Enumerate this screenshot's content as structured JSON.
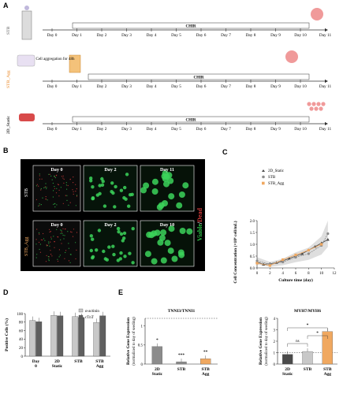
{
  "panels": {
    "A": "A",
    "B": "B",
    "C": "C",
    "D": "D",
    "E": "E"
  },
  "colors": {
    "stb": "#8c8c8c",
    "stb_agg": "#f0a860",
    "static": "#4a4a4a",
    "viable": "#2fc24a",
    "dead": "#d23a3a",
    "gray_bar": "#c8c8c8",
    "dark_bar": "#5f5f5f"
  },
  "panelA": {
    "days": [
      "Day 0",
      "Day 1",
      "Day 2",
      "Day 3",
      "Day 4",
      "Day 5",
      "Day 6",
      "Day 7",
      "Day 8",
      "Day 9",
      "Day 10",
      "Day 11"
    ],
    "rows": [
      {
        "label": "STB",
        "chir": "CHIR"
      },
      {
        "label": "STB_Agg",
        "chir": "CHIR",
        "note": "Cell aggregation for 48h"
      },
      {
        "label": "2D_Static",
        "chir": "CHIR"
      }
    ]
  },
  "panelB": {
    "rows": [
      {
        "label": "STB",
        "days": [
          "Day 0",
          "Day 2",
          "Day 11"
        ]
      },
      {
        "label": "STB_Agg",
        "days": [
          "Day 0",
          "Day 2",
          "Day 10"
        ]
      }
    ],
    "side_label_viable": "Viable",
    "side_label_sep": "/",
    "side_label_dead": "Dead"
  },
  "chart_data": [
    {
      "panel": "C",
      "type": "line",
      "xlabel": "Culture time (day)",
      "ylabel": "Cell Concentration (×10⁶ cell/mL)",
      "xlim": [
        0,
        12
      ],
      "ylim": [
        0,
        2.0
      ],
      "xticks": [
        0,
        2,
        4,
        6,
        8,
        10,
        12
      ],
      "yticks": [
        0,
        0.5,
        1.0,
        1.5,
        2.0
      ],
      "legend": [
        "2D_Static",
        "STB",
        "STB_Agg"
      ],
      "series": [
        {
          "name": "2D_Static",
          "x": [
            0,
            1,
            2,
            3,
            4,
            5,
            6,
            7,
            8,
            9,
            10,
            11
          ],
          "y": [
            0.25,
            0.15,
            0.18,
            0.22,
            0.3,
            0.4,
            0.5,
            0.6,
            0.75,
            0.9,
            1.05,
            1.2
          ]
        },
        {
          "name": "STB",
          "x": [
            0,
            2,
            4,
            6,
            8,
            10,
            11
          ],
          "y": [
            0.3,
            0.15,
            0.25,
            0.45,
            0.6,
            0.95,
            1.45
          ]
        },
        {
          "name": "STB_Agg",
          "x": [
            0,
            2,
            4,
            6,
            8,
            10
          ],
          "y": [
            0.2,
            0.1,
            0.35,
            0.55,
            0.75,
            1.0
          ]
        }
      ]
    },
    {
      "panel": "D",
      "type": "bar",
      "ylabel": "Positive Cells (%)",
      "ylim": [
        0,
        100
      ],
      "yticks": [
        0,
        20,
        40,
        60,
        80,
        100
      ],
      "categories": [
        "Day 0",
        "2D Static",
        "STB",
        "STB Agg"
      ],
      "legend": [
        "α-actinin",
        "cTnT"
      ],
      "series": [
        {
          "name": "α-actinin",
          "values": [
            84,
            96,
            93,
            79
          ]
        },
        {
          "name": "cTnT",
          "values": [
            81,
            95,
            91,
            95
          ]
        }
      ]
    },
    {
      "panel": "E-left",
      "type": "bar",
      "title": "TNNI3/TNNI1",
      "ylabel": "Relative Gene Expression",
      "ylabel2": "(normalized to day of seeding)",
      "ylim": [
        0,
        1.2
      ],
      "yticks": [
        0,
        0.5,
        1.0
      ],
      "categories": [
        "2D Static",
        "STB",
        "STB Agg"
      ],
      "values": [
        0.46,
        0.06,
        0.14
      ],
      "significance": [
        "*",
        "***",
        "**"
      ]
    },
    {
      "panel": "E-right",
      "type": "bar",
      "title": "MYH7/MYH6",
      "ylabel": "Relative Gene Expression",
      "ylabel2": "(normalized to day of seeding)",
      "ylim": [
        0,
        4
      ],
      "yticks": [
        0,
        1,
        2,
        3,
        4
      ],
      "categories": [
        "2D Static",
        "STB",
        "STB Agg"
      ],
      "values": [
        0.85,
        1.1,
        2.85
      ],
      "significance": [
        "ns",
        "*",
        "*"
      ]
    }
  ]
}
